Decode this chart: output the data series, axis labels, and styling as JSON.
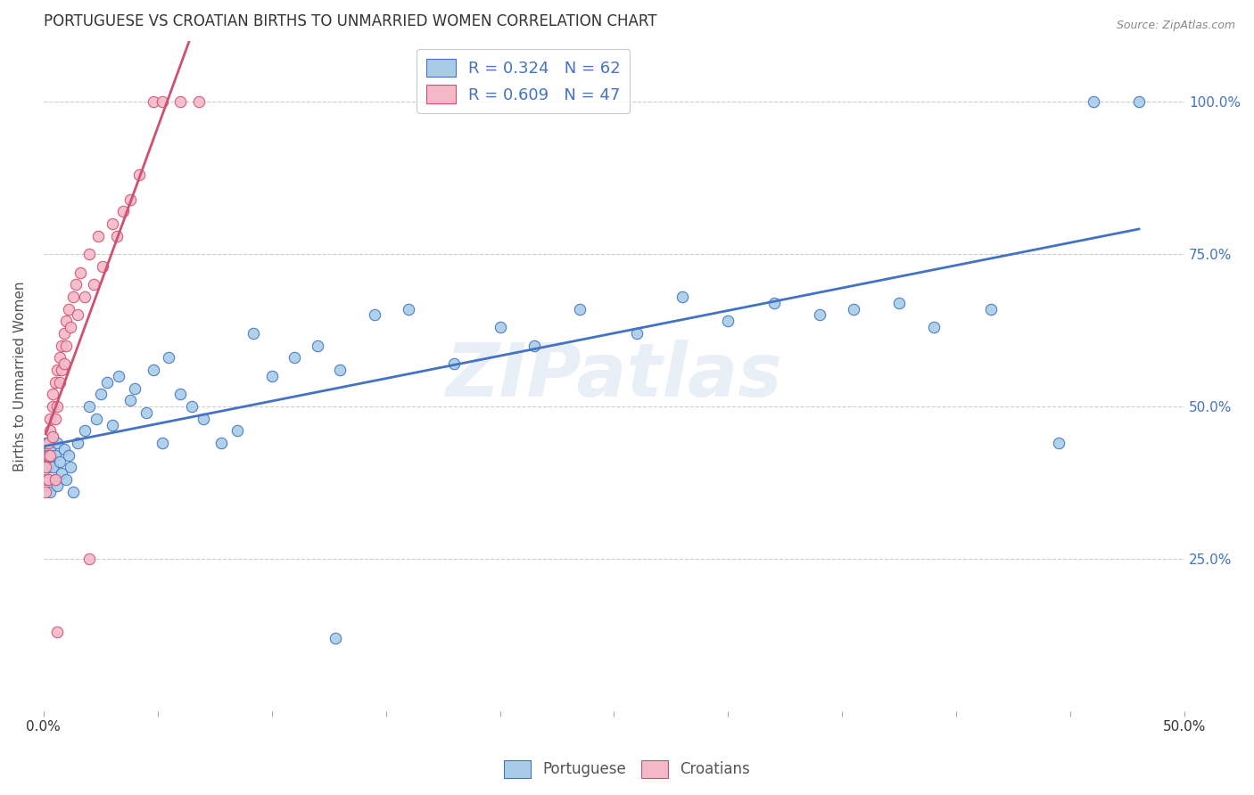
{
  "title": "PORTUGUESE VS CROATIAN BIRTHS TO UNMARRIED WOMEN CORRELATION CHART",
  "source": "Source: ZipAtlas.com",
  "ylabel": "Births to Unmarried Women",
  "blue_R": "R = 0.324",
  "blue_N": "N = 62",
  "pink_R": "R = 0.609",
  "pink_N": "N = 47",
  "legend_label_blue": "Portuguese",
  "legend_label_pink": "Croatians",
  "blue_color": "#a8cce8",
  "pink_color": "#f4b8c8",
  "trendline_blue": "#4472c4",
  "trendline_pink": "#d05070",
  "watermark": "ZIPatlas",
  "watermark_color": "#c8daf0",
  "xlim": [
    0.0,
    0.5
  ],
  "ylim": [
    0.0,
    1.1
  ],
  "blue_points": [
    [
      0.001,
      0.44
    ],
    [
      0.001,
      0.42
    ],
    [
      0.002,
      0.4
    ],
    [
      0.002,
      0.38
    ],
    [
      0.003,
      0.43
    ],
    [
      0.003,
      0.36
    ],
    [
      0.004,
      0.45
    ],
    [
      0.004,
      0.4
    ],
    [
      0.005,
      0.38
    ],
    [
      0.005,
      0.42
    ],
    [
      0.006,
      0.44
    ],
    [
      0.006,
      0.37
    ],
    [
      0.007,
      0.41
    ],
    [
      0.008,
      0.39
    ],
    [
      0.009,
      0.43
    ],
    [
      0.01,
      0.38
    ],
    [
      0.011,
      0.42
    ],
    [
      0.012,
      0.4
    ],
    [
      0.013,
      0.36
    ],
    [
      0.015,
      0.44
    ],
    [
      0.018,
      0.46
    ],
    [
      0.02,
      0.5
    ],
    [
      0.023,
      0.48
    ],
    [
      0.025,
      0.52
    ],
    [
      0.028,
      0.54
    ],
    [
      0.03,
      0.47
    ],
    [
      0.033,
      0.55
    ],
    [
      0.038,
      0.51
    ],
    [
      0.04,
      0.53
    ],
    [
      0.045,
      0.49
    ],
    [
      0.048,
      0.56
    ],
    [
      0.052,
      0.44
    ],
    [
      0.055,
      0.58
    ],
    [
      0.06,
      0.52
    ],
    [
      0.065,
      0.5
    ],
    [
      0.07,
      0.48
    ],
    [
      0.078,
      0.44
    ],
    [
      0.085,
      0.46
    ],
    [
      0.092,
      0.62
    ],
    [
      0.1,
      0.55
    ],
    [
      0.11,
      0.58
    ],
    [
      0.12,
      0.6
    ],
    [
      0.13,
      0.56
    ],
    [
      0.145,
      0.65
    ],
    [
      0.16,
      0.66
    ],
    [
      0.18,
      0.57
    ],
    [
      0.2,
      0.63
    ],
    [
      0.215,
      0.6
    ],
    [
      0.235,
      0.66
    ],
    [
      0.26,
      0.62
    ],
    [
      0.28,
      0.68
    ],
    [
      0.3,
      0.64
    ],
    [
      0.32,
      0.67
    ],
    [
      0.34,
      0.65
    ],
    [
      0.355,
      0.66
    ],
    [
      0.375,
      0.67
    ],
    [
      0.39,
      0.63
    ],
    [
      0.415,
      0.66
    ],
    [
      0.445,
      0.44
    ],
    [
      0.46,
      1.0
    ],
    [
      0.48,
      1.0
    ],
    [
      0.128,
      0.12
    ]
  ],
  "pink_points": [
    [
      0.001,
      0.38
    ],
    [
      0.001,
      0.4
    ],
    [
      0.001,
      0.36
    ],
    [
      0.002,
      0.42
    ],
    [
      0.002,
      0.38
    ],
    [
      0.002,
      0.44
    ],
    [
      0.003,
      0.46
    ],
    [
      0.003,
      0.42
    ],
    [
      0.003,
      0.48
    ],
    [
      0.004,
      0.5
    ],
    [
      0.004,
      0.45
    ],
    [
      0.004,
      0.52
    ],
    [
      0.005,
      0.54
    ],
    [
      0.005,
      0.48
    ],
    [
      0.005,
      0.38
    ],
    [
      0.006,
      0.56
    ],
    [
      0.006,
      0.5
    ],
    [
      0.007,
      0.58
    ],
    [
      0.007,
      0.54
    ],
    [
      0.008,
      0.6
    ],
    [
      0.008,
      0.56
    ],
    [
      0.009,
      0.62
    ],
    [
      0.009,
      0.57
    ],
    [
      0.01,
      0.64
    ],
    [
      0.01,
      0.6
    ],
    [
      0.011,
      0.66
    ],
    [
      0.012,
      0.63
    ],
    [
      0.013,
      0.68
    ],
    [
      0.014,
      0.7
    ],
    [
      0.015,
      0.65
    ],
    [
      0.016,
      0.72
    ],
    [
      0.018,
      0.68
    ],
    [
      0.02,
      0.75
    ],
    [
      0.022,
      0.7
    ],
    [
      0.024,
      0.78
    ],
    [
      0.026,
      0.73
    ],
    [
      0.03,
      0.8
    ],
    [
      0.032,
      0.78
    ],
    [
      0.035,
      0.82
    ],
    [
      0.038,
      0.84
    ],
    [
      0.042,
      0.88
    ],
    [
      0.048,
      1.0
    ],
    [
      0.052,
      1.0
    ],
    [
      0.06,
      1.0
    ],
    [
      0.068,
      1.0
    ],
    [
      0.02,
      0.25
    ],
    [
      0.006,
      0.13
    ]
  ],
  "blue_trendline": [
    [
      0.001,
      0.43
    ],
    [
      0.5,
      0.72
    ]
  ],
  "pink_trendline": [
    [
      0.001,
      0.4
    ],
    [
      0.068,
      1.0
    ]
  ]
}
